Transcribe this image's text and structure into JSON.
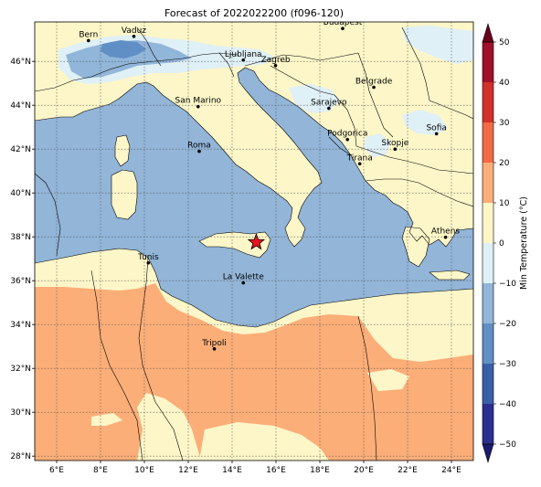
{
  "title": "Forecast of 2022022200 (f096-120)",
  "map": {
    "lon_range": [
      5,
      25
    ],
    "lat_range": [
      27.8,
      47.8
    ],
    "lon_ticks": [
      {
        "value": 6,
        "label": "6°E"
      },
      {
        "value": 8,
        "label": "8°E"
      },
      {
        "value": 10,
        "label": "10°E"
      },
      {
        "value": 12,
        "label": "12°E"
      },
      {
        "value": 14,
        "label": "14°E"
      },
      {
        "value": 16,
        "label": "16°E"
      },
      {
        "value": 18,
        "label": "18°E"
      },
      {
        "value": 20,
        "label": "20°E"
      },
      {
        "value": 22,
        "label": "22°E"
      },
      {
        "value": 24,
        "label": "24°E"
      }
    ],
    "lat_ticks": [
      {
        "value": 28,
        "label": "28°N"
      },
      {
        "value": 30,
        "label": "30°N"
      },
      {
        "value": 32,
        "label": "32°N"
      },
      {
        "value": 34,
        "label": "34°N"
      },
      {
        "value": 36,
        "label": "36°N"
      },
      {
        "value": 38,
        "label": "38°N"
      },
      {
        "value": 40,
        "label": "40°N"
      },
      {
        "value": 42,
        "label": "42°N"
      },
      {
        "value": 44,
        "label": "44°N"
      },
      {
        "value": 46,
        "label": "46°N"
      }
    ],
    "cities": [
      {
        "name": "Bern",
        "lon": 7.45,
        "lat": 46.95
      },
      {
        "name": "Vaduz",
        "lon": 9.52,
        "lat": 47.14
      },
      {
        "name": "Budapest",
        "lon": 19.04,
        "lat": 47.5
      },
      {
        "name": "Ljubljana",
        "lon": 14.51,
        "lat": 46.06
      },
      {
        "name": "Zagreb",
        "lon": 15.98,
        "lat": 45.81
      },
      {
        "name": "Belgrade",
        "lon": 20.46,
        "lat": 44.82
      },
      {
        "name": "San Marino",
        "lon": 12.45,
        "lat": 43.94
      },
      {
        "name": "Sarajevo",
        "lon": 18.41,
        "lat": 43.86
      },
      {
        "name": "Sofia",
        "lon": 23.32,
        "lat": 42.7
      },
      {
        "name": "Podgorica",
        "lon": 19.26,
        "lat": 42.44
      },
      {
        "name": "Skopje",
        "lon": 21.43,
        "lat": 42.0
      },
      {
        "name": "Roma",
        "lon": 12.5,
        "lat": 41.9
      },
      {
        "name": "Tirana",
        "lon": 19.82,
        "lat": 41.33
      },
      {
        "name": "Athens",
        "lon": 23.73,
        "lat": 37.98
      },
      {
        "name": "Tunis",
        "lon": 10.18,
        "lat": 36.81
      },
      {
        "name": "La Valette",
        "lon": 14.51,
        "lat": 35.9
      },
      {
        "name": "Tripoli",
        "lon": 13.19,
        "lat": 32.89
      }
    ],
    "marker": {
      "name": "star",
      "lon": 15.1,
      "lat": 37.75,
      "color": "#e8141e"
    }
  },
  "colorbar": {
    "label": "Min Temperature (°C)",
    "min": -50,
    "max": 50,
    "ticks": [
      50,
      40,
      30,
      20,
      10,
      0,
      -10,
      -20,
      -30,
      -40,
      -50
    ],
    "bins": [
      {
        "from": -50,
        "to": -40,
        "color": "#2b2f8f"
      },
      {
        "from": -40,
        "to": -30,
        "color": "#3a5fa8"
      },
      {
        "from": -30,
        "to": -20,
        "color": "#5f8fc4"
      },
      {
        "from": -20,
        "to": -10,
        "color": "#91b6d9"
      },
      {
        "from": -10,
        "to": 0,
        "color": "#dff0f6"
      },
      {
        "from": 0,
        "to": 10,
        "color": "#fdf6c8"
      },
      {
        "from": 10,
        "to": 20,
        "color": "#fcae78"
      },
      {
        "from": 20,
        "to": 30,
        "color": "#f26a44"
      },
      {
        "from": 30,
        "to": 40,
        "color": "#d2302a"
      },
      {
        "from": 40,
        "to": 50,
        "color": "#a0102a"
      }
    ],
    "under_color": "#1a1a6e",
    "over_color": "#6b0018"
  },
  "colors": {
    "sea": "#92b5d8",
    "land_mild": "#fdf6c8",
    "land_warm": "#fcae78",
    "cold": "#dff0f6",
    "colder": "#91b6d9",
    "coldest": "#5f8fc4"
  }
}
